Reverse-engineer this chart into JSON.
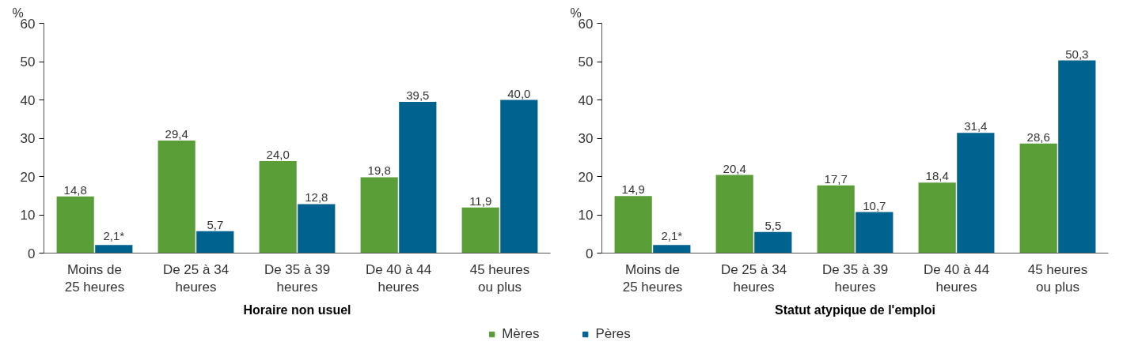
{
  "chart_data": [
    {
      "type": "bar",
      "title": "Horaire non usuel",
      "ylabel": "%",
      "categories": [
        "Moins de\n25 heures",
        "De 25 à 34\nheures",
        "De 35 à 39\nheures",
        "De 40 à 44\nheures",
        "45 heures\nou plus"
      ],
      "series": [
        {
          "name": "Mères",
          "color": "#5a9e38",
          "values": [
            14.8,
            29.4,
            24.0,
            19.8,
            11.9
          ],
          "value_labels": [
            "14,8",
            "29,4",
            "24,0",
            "19,8",
            "11,9"
          ]
        },
        {
          "name": "Pères",
          "color": "#00628f",
          "values": [
            2.1,
            5.7,
            12.8,
            39.5,
            40.0
          ],
          "value_labels": [
            "2,1*",
            "5,7",
            "12,8",
            "39,5",
            "40,0"
          ]
        }
      ],
      "ylim": [
        0,
        60
      ],
      "yticks": [
        0,
        10,
        20,
        30,
        40,
        50,
        60
      ],
      "grid": false,
      "legend": "bottom"
    },
    {
      "type": "bar",
      "title": "Statut atypique de l'emploi",
      "ylabel": "%",
      "categories": [
        "Moins de\n25 heures",
        "De 25 à 34\nheures",
        "De 35 à 39\nheures",
        "De 40 à 44\nheures",
        "45 heures\nou plus"
      ],
      "series": [
        {
          "color": "#5a9e38",
          "values": [
            14.9,
            20.4,
            17.7,
            18.4,
            28.6
          ],
          "value_labels": [
            "14,9",
            "20,4",
            "17,7",
            "18,4",
            "28,6"
          ]
        },
        {
          "color": "#00628f",
          "values": [
            2.1,
            5.5,
            10.7,
            31.4,
            50.3
          ],
          "value_labels": [
            "2,1*",
            "5,5",
            "10,7",
            "31,4",
            "50,3"
          ]
        }
      ],
      "ylim": [
        0,
        60
      ],
      "yticks": [
        0,
        10,
        20,
        30,
        40,
        50,
        60
      ],
      "grid": false
    }
  ]
}
